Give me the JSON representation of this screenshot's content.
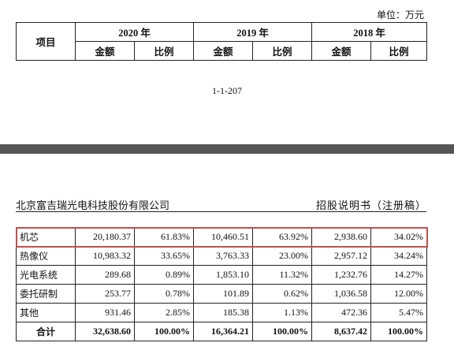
{
  "top_table": {
    "unit": "单位：万元",
    "item_header": "项目",
    "years": [
      "2020 年",
      "2019 年",
      "2018 年"
    ],
    "subheaders": [
      "金额",
      "比例",
      "金额",
      "比例",
      "金额",
      "比例"
    ]
  },
  "page_number": "1-1-207",
  "running_header": {
    "company": "北京富吉瑞光电科技股份有限公司",
    "document": "招股说明书（注册稿）"
  },
  "table": {
    "rows": [
      [
        "机芯",
        "20,180.37",
        "61.83%",
        "10,460.51",
        "63.92%",
        "2,938.60",
        "34.02%"
      ],
      [
        "热像仪",
        "10,983.32",
        "33.65%",
        "3,763.33",
        "23.00%",
        "2,957.12",
        "34.24%"
      ],
      [
        "光电系统",
        "289.68",
        "0.89%",
        "1,853.10",
        "11.32%",
        "1,232.76",
        "14.27%"
      ],
      [
        "委托研制",
        "253.77",
        "0.78%",
        "101.89",
        "0.62%",
        "1,036.58",
        "12.00%"
      ],
      [
        "其他",
        "931.46",
        "2.85%",
        "185.38",
        "1.13%",
        "472.36",
        "5.47%"
      ],
      [
        "合计",
        "32,638.60",
        "100.00%",
        "16,364.21",
        "100.00%",
        "8,637.42",
        "100.00%"
      ]
    ]
  }
}
